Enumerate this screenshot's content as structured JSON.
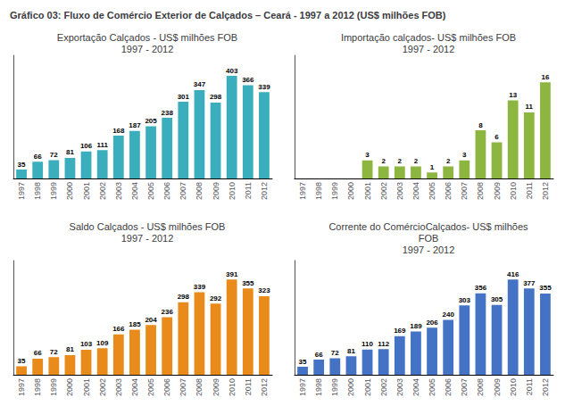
{
  "title": "Gráfico 03: Fluxo de Comércio Exterior de Calçados – Ceará - 1997 a 2012 (US$ milhões FOB)",
  "chart_data": [
    {
      "type": "bar",
      "title": "Exportação Calçados - US$ milhões FOB\n1997 - 2012",
      "categories": [
        "1997",
        "1998",
        "1999",
        "2000",
        "2001",
        "2002",
        "2003",
        "2004",
        "2005",
        "2006",
        "2007",
        "2008",
        "2009",
        "2010",
        "2011",
        "2012"
      ],
      "values": [
        35,
        66,
        72,
        81,
        106,
        111,
        168,
        187,
        205,
        238,
        301,
        347,
        298,
        403,
        366,
        339
      ],
      "color": "#3aaebd",
      "ylim": [
        0,
        483.6
      ],
      "grid": false,
      "data_labels": true,
      "tick_labels": "x"
    },
    {
      "type": "bar",
      "title": "Importação calçados- US$ milhões FOB\n1997 - 2012",
      "categories": [
        "1997",
        "1998",
        "1999",
        "2000",
        "2001",
        "2002",
        "2003",
        "2004",
        "2005",
        "2006",
        "2007",
        "2008",
        "2009",
        "2010",
        "2011",
        "2012"
      ],
      "values": [
        0,
        0,
        0,
        0,
        3,
        2,
        2,
        2,
        1,
        2,
        3,
        8,
        6,
        13,
        11,
        16
      ],
      "value_labels": [
        null,
        null,
        null,
        null,
        "3",
        "2",
        "2",
        "2",
        "1",
        "2",
        "3",
        "8",
        "6",
        "13",
        "11",
        "16"
      ],
      "color": "#8db640",
      "ylim": [
        0,
        20.48
      ],
      "grid": false,
      "data_labels": true,
      "tick_labels": "x"
    },
    {
      "type": "bar",
      "title": "Saldo Calçados - US$ milhões FOB\n1997 - 2012",
      "categories": [
        "1997",
        "1998",
        "1999",
        "2000",
        "2001",
        "2002",
        "2003",
        "2004",
        "2005",
        "2006",
        "2007",
        "2008",
        "2009",
        "2010",
        "2011",
        "2012"
      ],
      "values": [
        35,
        66,
        72,
        81,
        103,
        109,
        166,
        185,
        204,
        236,
        298,
        339,
        292,
        391,
        355,
        323
      ],
      "color": "#e88b1a",
      "ylim": [
        0,
        469.2
      ],
      "grid": false,
      "data_labels": true,
      "tick_labels": "x"
    },
    {
      "type": "bar",
      "title": "Corrente do ComércioCalçados- US$ milhões\nFOB\n1997 - 2012",
      "categories": [
        "1997",
        "1998",
        "1999",
        "2000",
        "2001",
        "2002",
        "2003",
        "2004",
        "2005",
        "2006",
        "2007",
        "2008",
        "2009",
        "2010",
        "2011",
        "2012"
      ],
      "values": [
        35,
        66,
        72,
        81,
        110,
        112,
        169,
        189,
        206,
        240,
        303,
        356,
        305,
        416,
        377,
        355
      ],
      "color": "#4472c4",
      "ylim": [
        0,
        499.2
      ],
      "grid": false,
      "data_labels": true,
      "tick_labels": "x"
    }
  ]
}
